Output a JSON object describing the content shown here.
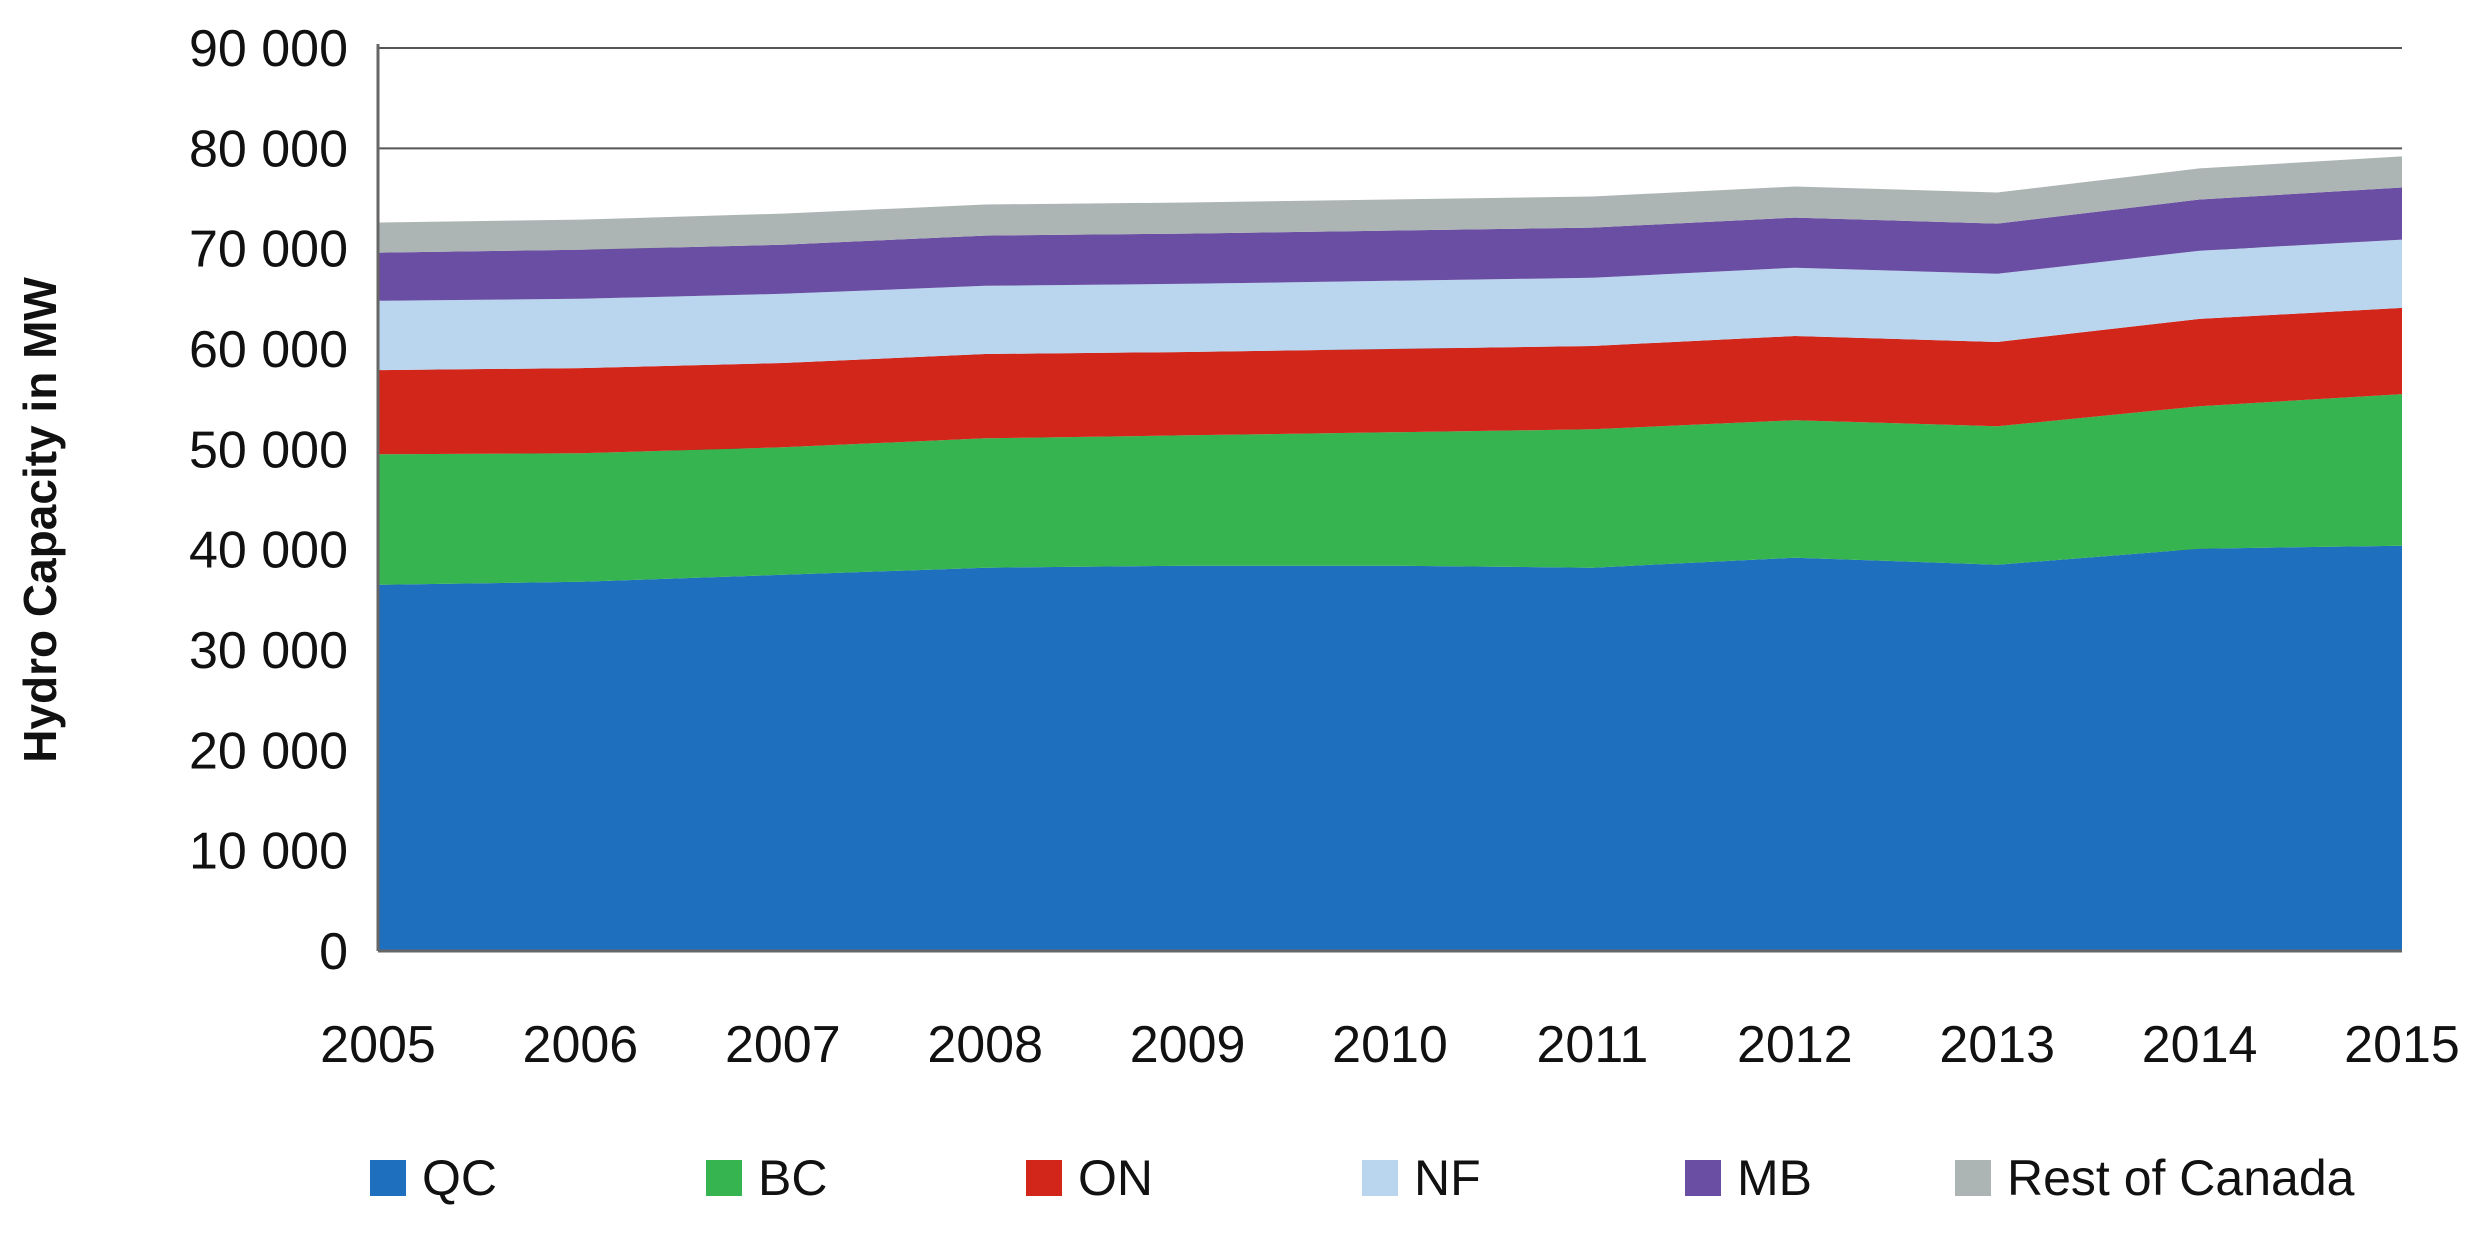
{
  "chart_data": {
    "type": "area",
    "stacked": true,
    "title": "",
    "xlabel": "",
    "ylabel": "Hydro Capacity in MW",
    "ylim": [
      0,
      90000
    ],
    "grid": "major y",
    "x": [
      "2005",
      "2006",
      "2007",
      "2008",
      "2009",
      "2010",
      "2011",
      "2012",
      "2013",
      "2014",
      "2015"
    ],
    "y_ticks": [
      {
        "value": 0,
        "label": "0"
      },
      {
        "value": 10000,
        "label": "10 000"
      },
      {
        "value": 20000,
        "label": "20 000"
      },
      {
        "value": 30000,
        "label": "30 000"
      },
      {
        "value": 40000,
        "label": "40 000"
      },
      {
        "value": 50000,
        "label": "50 000"
      },
      {
        "value": 60000,
        "label": "60 000"
      },
      {
        "value": 70000,
        "label": "70 000"
      },
      {
        "value": 80000,
        "label": "80 000"
      },
      {
        "value": 90000,
        "label": "90 000"
      }
    ],
    "series": [
      {
        "name": "QC",
        "color": "#1f6fbf",
        "values": [
          36500,
          36800,
          37500,
          38200,
          38400,
          38400,
          38200,
          39200,
          38500,
          40100,
          40400
        ]
      },
      {
        "name": "BC",
        "color": "#35b44f",
        "values": [
          13000,
          12800,
          12700,
          12900,
          13000,
          13300,
          13800,
          13700,
          13800,
          14200,
          15100
        ]
      },
      {
        "name": "ON",
        "color": "#d2261b",
        "values": [
          8400,
          8500,
          8400,
          8400,
          8300,
          8300,
          8300,
          8400,
          8400,
          8700,
          8600
        ]
      },
      {
        "name": "NF",
        "color": "#b9d6ee",
        "values": [
          6900,
          6900,
          6900,
          6800,
          6800,
          6800,
          6800,
          6800,
          6800,
          6800,
          6800
        ]
      },
      {
        "name": "MB",
        "color": "#6a4ea3",
        "values": [
          4800,
          4900,
          4900,
          5000,
          5000,
          5000,
          5000,
          5000,
          5000,
          5100,
          5200
        ]
      },
      {
        "name": "Rest of Canada",
        "color": "#adb5b4",
        "values": [
          3000,
          3000,
          3100,
          3100,
          3100,
          3100,
          3100,
          3100,
          3100,
          3100,
          3100
        ]
      }
    ],
    "legend": "bottom"
  },
  "colors": {
    "axis": "#666666",
    "grid": "#555555",
    "text": "#111111"
  }
}
